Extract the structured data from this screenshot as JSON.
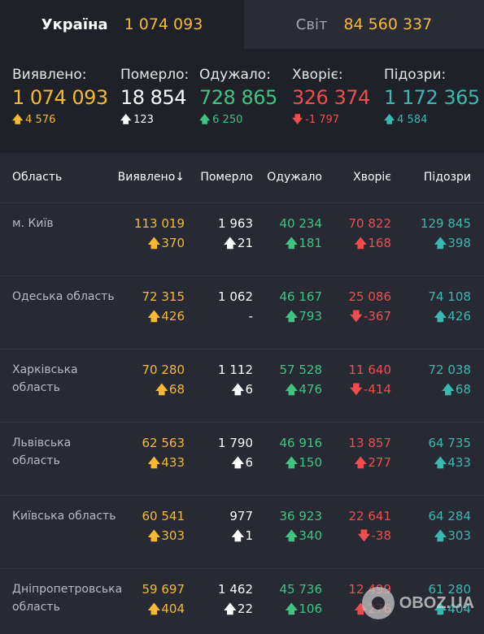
{
  "tabs": {
    "ukraine": {
      "label": "Україна",
      "value": "1 074 093"
    },
    "world": {
      "label": "Світ",
      "value": "84 560 337"
    }
  },
  "summary": [
    {
      "label": "Виявлено:",
      "value": "1 074 093",
      "arrow": "🡅",
      "delta": "4 576",
      "color": "#f5b932"
    },
    {
      "label": "Померло:",
      "value": "18 854",
      "arrow": "🡅",
      "delta": "123",
      "color": "#ffffff"
    },
    {
      "label": "Одужало:",
      "value": "728 865",
      "arrow": "🡅",
      "delta": "6 250",
      "color": "#3ec480"
    },
    {
      "label": "Хворіє:",
      "value": "326 374",
      "arrow": "🡇",
      "delta": "-1 797",
      "color": "#ef4d4d"
    },
    {
      "label": "Підозри:",
      "value": "1 172 365",
      "arrow": "🡅",
      "delta": "4 584",
      "color": "#39b8b0"
    }
  ],
  "table": {
    "headers": {
      "region": "Область",
      "confirmed": "Виявлено",
      "sort_arrow": "↓",
      "deaths": "Померло",
      "recovered": "Одужало",
      "sick": "Хворіє",
      "suspected": "Підозри"
    },
    "rows": [
      {
        "region": "м. Київ",
        "confirmed": "113 019",
        "confirmed_arrow": "🡅",
        "confirmed_delta": "370",
        "deaths": "1 963",
        "deaths_arrow": "🡅",
        "deaths_delta": "21",
        "recovered": "40 234",
        "recovered_arrow": "🡅",
        "recovered_delta": "181",
        "sick": "70 822",
        "sick_arrow": "🡅",
        "sick_delta": "168",
        "suspected": "129 845",
        "suspected_arrow": "🡅",
        "suspected_delta": "398"
      },
      {
        "region": "Одеська область",
        "confirmed": "72 315",
        "confirmed_arrow": "🡅",
        "confirmed_delta": "426",
        "deaths": "1 062",
        "deaths_arrow": "",
        "deaths_delta": "-",
        "recovered": "46 167",
        "recovered_arrow": "🡅",
        "recovered_delta": "793",
        "sick": "25 086",
        "sick_arrow": "🡇",
        "sick_delta": "-367",
        "suspected": "74 108",
        "suspected_arrow": "🡅",
        "suspected_delta": "426"
      },
      {
        "region": "Харківська область",
        "confirmed": "70 280",
        "confirmed_arrow": "🡅",
        "confirmed_delta": "68",
        "deaths": "1 112",
        "deaths_arrow": "🡅",
        "deaths_delta": "6",
        "recovered": "57 528",
        "recovered_arrow": "🡅",
        "recovered_delta": "476",
        "sick": "11 640",
        "sick_arrow": "🡇",
        "sick_delta": "-414",
        "suspected": "72 038",
        "suspected_arrow": "🡅",
        "suspected_delta": "68"
      },
      {
        "region": "Львівська область",
        "confirmed": "62 563",
        "confirmed_arrow": "🡅",
        "confirmed_delta": "433",
        "deaths": "1 790",
        "deaths_arrow": "🡅",
        "deaths_delta": "6",
        "recovered": "46 916",
        "recovered_arrow": "🡅",
        "recovered_delta": "150",
        "sick": "13 857",
        "sick_arrow": "🡅",
        "sick_delta": "277",
        "suspected": "64 735",
        "suspected_arrow": "🡅",
        "suspected_delta": "433"
      },
      {
        "region": "Київська область",
        "confirmed": "60 541",
        "confirmed_arrow": "🡅",
        "confirmed_delta": "303",
        "deaths": "977",
        "deaths_arrow": "🡅",
        "deaths_delta": "1",
        "recovered": "36 923",
        "recovered_arrow": "🡅",
        "recovered_delta": "340",
        "sick": "22 641",
        "sick_arrow": "🡇",
        "sick_delta": "-38",
        "suspected": "64 284",
        "suspected_arrow": "🡅",
        "suspected_delta": "303"
      },
      {
        "region": "Дніпропетровська область",
        "confirmed": "59 697",
        "confirmed_arrow": "🡅",
        "confirmed_delta": "404",
        "deaths": "1 462",
        "deaths_arrow": "🡅",
        "deaths_delta": "22",
        "recovered": "45 736",
        "recovered_arrow": "🡅",
        "recovered_delta": "106",
        "sick": "12 499",
        "sick_arrow": "🡅",
        "sick_delta": "276",
        "suspected": "61 280",
        "suspected_arrow": "🡅",
        "suspected_delta": "404"
      }
    ]
  },
  "watermark": {
    "text": "OBOZ.UA"
  }
}
